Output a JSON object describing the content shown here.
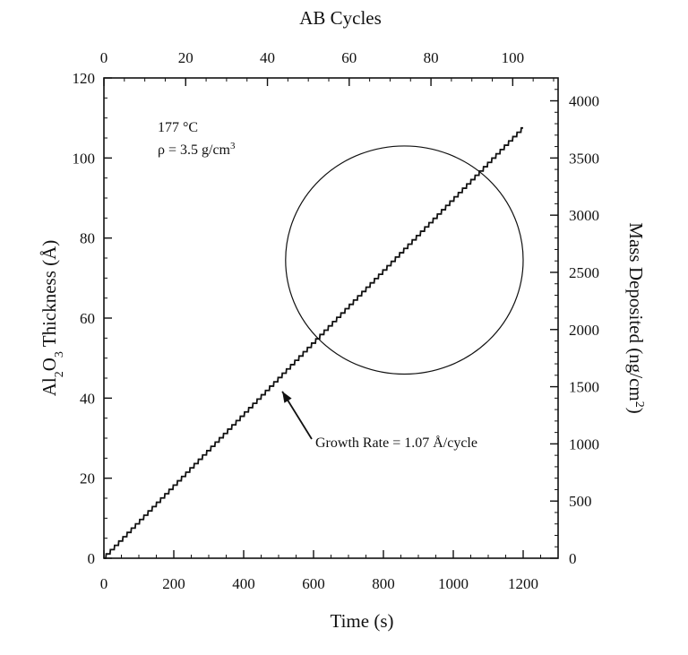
{
  "chart_data": {
    "type": "line",
    "xlabel": "Time (s)",
    "x2label": "AB Cycles",
    "ylabel_main": "Al",
    "ylabel_sub1": "2",
    "ylabel_mid": "O",
    "ylabel_sub2": "3",
    "ylabel_tail": " Thickness (Å)",
    "y2label_main": "Mass Deposited (ng/cm",
    "y2label_sup": "2",
    "y2label_tail": ")",
    "xlim": [
      0,
      1300
    ],
    "ylim": [
      0,
      120
    ],
    "x2lim": [
      0,
      111.1
    ],
    "y2lim": [
      0,
      4200
    ],
    "xticks": [
      0,
      200,
      400,
      600,
      800,
      1000,
      1200
    ],
    "yticks": [
      0,
      20,
      40,
      60,
      80,
      100,
      120
    ],
    "x2ticks": [
      0,
      20,
      40,
      60,
      80,
      100
    ],
    "y2ticks": [
      0,
      500,
      1000,
      1500,
      2000,
      2500,
      3000,
      3500,
      4000
    ],
    "series": [
      {
        "cycle_period_s": 12,
        "growth_per_cycle": 1.07,
        "start": [
          0,
          0
        ],
        "end": [
          1200,
          107.5
        ]
      }
    ],
    "annotations": {
      "temperature": "177 °C",
      "density_prefix": "ρ = 3.5 g/cm",
      "density_sup": "3",
      "growth_rate": "Growth Rate = 1.07 Å/cycle",
      "arrow_tip": [
        490,
        41
      ]
    },
    "highlight_circle": {
      "center": [
        860,
        74.5
      ],
      "rx_time": 340,
      "ry_thickness": 28.5
    }
  }
}
